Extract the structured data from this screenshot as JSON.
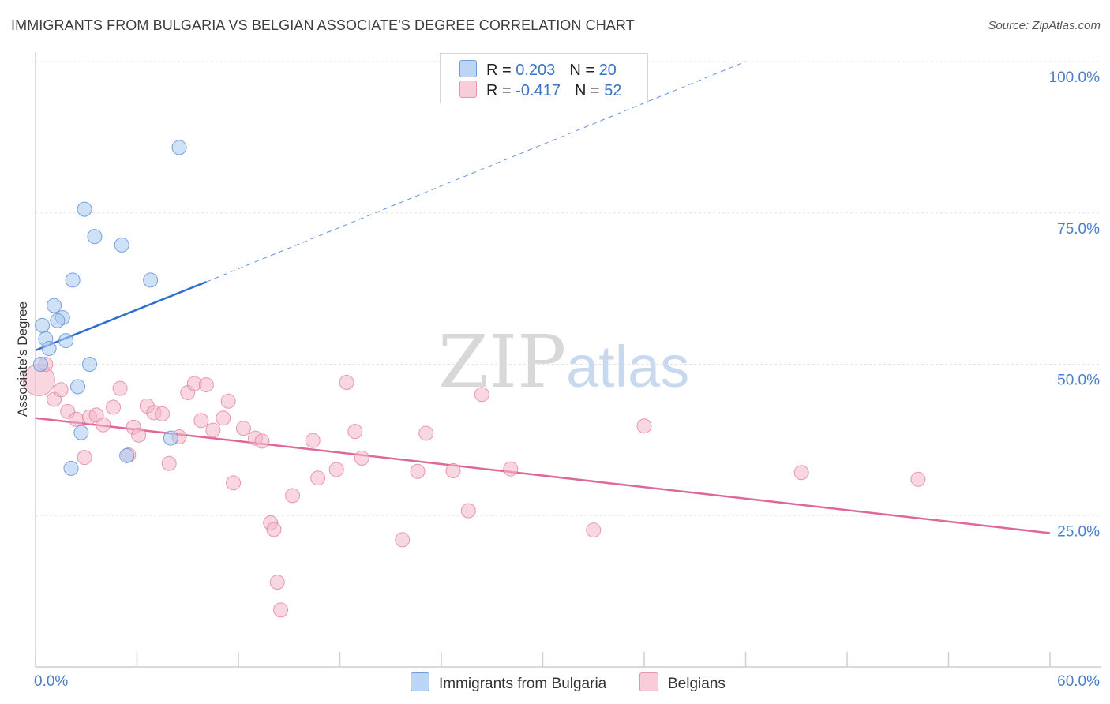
{
  "title": "IMMIGRANTS FROM BULGARIA VS BELGIAN ASSOCIATE'S DEGREE CORRELATION CHART",
  "source": "Source: ZipAtlas.com",
  "watermark": {
    "zip": "ZIP",
    "atlas": "atlas"
  },
  "legend": {
    "rows": [
      {
        "r_label": "R = ",
        "r_value": "0.203",
        "n_label": "N = ",
        "n_value": "20",
        "color": "#a8c8f0"
      },
      {
        "r_label": "R = ",
        "r_value": "-0.417",
        "n_label": "N = ",
        "n_value": "52",
        "color": "#f4b6c8"
      }
    ]
  },
  "bottom_legend": {
    "series1": "Immigrants from Bulgaria",
    "series2": "Belgians"
  },
  "chart_data": {
    "type": "scatter",
    "title": "IMMIGRANTS FROM BULGARIA VS BELGIAN ASSOCIATE'S DEGREE CORRELATION CHART",
    "xlabel": "",
    "ylabel": "Associate's Degree",
    "xlim": [
      0,
      60
    ],
    "ylim": [
      0,
      100
    ],
    "x_tick_labels": [
      "0.0%",
      "60.0%"
    ],
    "y_ticks": [
      25,
      50,
      75,
      100
    ],
    "y_tick_labels": [
      "25.0%",
      "50.0%",
      "75.0%",
      "100.0%"
    ],
    "grid": true,
    "series": [
      {
        "name": "Immigrants from Bulgaria",
        "color": "#a8c8f0",
        "stroke": "#5b8fd6",
        "trend_color": "#2d6fce",
        "r": 0.203,
        "n": 20,
        "trend": {
          "x0": 0,
          "y0": 52.3,
          "x1": 10.1,
          "y1": 63.6,
          "dash_to_x": 42.0,
          "dash_to_y": 100.0
        },
        "points": [
          {
            "x": 8.5,
            "y": 85.8
          },
          {
            "x": 2.9,
            "y": 75.6
          },
          {
            "x": 3.5,
            "y": 71.1
          },
          {
            "x": 5.1,
            "y": 69.7
          },
          {
            "x": 2.2,
            "y": 63.9
          },
          {
            "x": 6.8,
            "y": 63.9
          },
          {
            "x": 1.1,
            "y": 59.7
          },
          {
            "x": 1.6,
            "y": 57.7
          },
          {
            "x": 1.3,
            "y": 57.2
          },
          {
            "x": 0.4,
            "y": 56.4
          },
          {
            "x": 0.6,
            "y": 54.2
          },
          {
            "x": 1.8,
            "y": 53.9
          },
          {
            "x": 0.8,
            "y": 52.6
          },
          {
            "x": 0.3,
            "y": 50.0
          },
          {
            "x": 3.2,
            "y": 50.0
          },
          {
            "x": 2.5,
            "y": 46.3
          },
          {
            "x": 2.7,
            "y": 38.7
          },
          {
            "x": 8.0,
            "y": 37.8
          },
          {
            "x": 5.4,
            "y": 34.9
          },
          {
            "x": 2.1,
            "y": 32.8
          }
        ]
      },
      {
        "name": "Belgians",
        "color": "#f4b6c8",
        "stroke": "#e37fa0",
        "trend_color": "#e0679a",
        "r": -0.417,
        "n": 52,
        "trend": {
          "x0": 0,
          "y0": 41.1,
          "x1": 60,
          "y1": 22.1
        },
        "points": [
          {
            "x": 0.2,
            "y": 47.4,
            "big": true
          },
          {
            "x": 0.6,
            "y": 50.0
          },
          {
            "x": 1.1,
            "y": 44.2
          },
          {
            "x": 1.5,
            "y": 45.8
          },
          {
            "x": 1.9,
            "y": 42.2
          },
          {
            "x": 2.4,
            "y": 40.9
          },
          {
            "x": 2.9,
            "y": 34.6
          },
          {
            "x": 3.2,
            "y": 41.3
          },
          {
            "x": 3.6,
            "y": 41.6
          },
          {
            "x": 4.0,
            "y": 40.0
          },
          {
            "x": 4.6,
            "y": 42.9
          },
          {
            "x": 5.0,
            "y": 46.0
          },
          {
            "x": 5.5,
            "y": 35.0
          },
          {
            "x": 5.8,
            "y": 39.6
          },
          {
            "x": 6.1,
            "y": 38.3
          },
          {
            "x": 6.6,
            "y": 43.1
          },
          {
            "x": 7.0,
            "y": 42.0
          },
          {
            "x": 7.5,
            "y": 41.8
          },
          {
            "x": 7.9,
            "y": 33.6
          },
          {
            "x": 8.5,
            "y": 38.0
          },
          {
            "x": 9.0,
            "y": 45.3
          },
          {
            "x": 9.4,
            "y": 46.8
          },
          {
            "x": 9.8,
            "y": 40.7
          },
          {
            "x": 10.1,
            "y": 46.6
          },
          {
            "x": 10.5,
            "y": 39.1
          },
          {
            "x": 11.1,
            "y": 41.1
          },
          {
            "x": 11.4,
            "y": 43.9
          },
          {
            "x": 11.7,
            "y": 30.4
          },
          {
            "x": 12.3,
            "y": 39.4
          },
          {
            "x": 13.0,
            "y": 37.8
          },
          {
            "x": 13.4,
            "y": 37.3
          },
          {
            "x": 13.9,
            "y": 23.8
          },
          {
            "x": 14.1,
            "y": 22.7
          },
          {
            "x": 14.3,
            "y": 14.0
          },
          {
            "x": 14.5,
            "y": 9.4
          },
          {
            "x": 15.2,
            "y": 28.3
          },
          {
            "x": 16.4,
            "y": 37.4
          },
          {
            "x": 16.7,
            "y": 31.2
          },
          {
            "x": 17.8,
            "y": 32.6
          },
          {
            "x": 18.4,
            "y": 47.0
          },
          {
            "x": 18.9,
            "y": 38.9
          },
          {
            "x": 19.3,
            "y": 34.5
          },
          {
            "x": 21.7,
            "y": 21.0
          },
          {
            "x": 22.6,
            "y": 32.3
          },
          {
            "x": 23.1,
            "y": 38.6
          },
          {
            "x": 24.7,
            "y": 32.4
          },
          {
            "x": 25.6,
            "y": 25.8
          },
          {
            "x": 26.4,
            "y": 45.0
          },
          {
            "x": 28.1,
            "y": 32.7
          },
          {
            "x": 33.0,
            "y": 22.6
          },
          {
            "x": 36.0,
            "y": 39.8
          },
          {
            "x": 45.3,
            "y": 32.1
          },
          {
            "x": 52.2,
            "y": 31.0
          }
        ]
      }
    ]
  }
}
